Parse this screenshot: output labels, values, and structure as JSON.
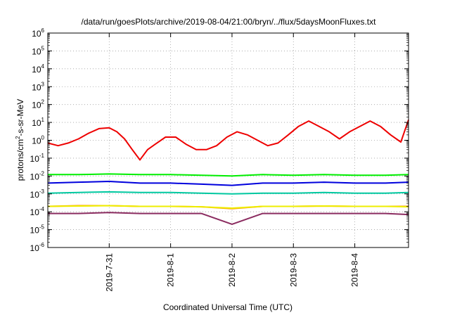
{
  "chart_data": {
    "type": "line",
    "title": "/data/run/goesPlots/archive/2019-08-04/21:00/bryn/../flux/5daysMoonFluxes.txt",
    "xlabel": "Coordinated Universal Time (UTC)",
    "ylabel_parts": [
      "protons/cm",
      "2",
      "-s-sr-MeV"
    ],
    "y_scale": "log",
    "ylim": [
      1e-06,
      1000000.0
    ],
    "y_ticks": [
      {
        "base": "10",
        "exp": "-6"
      },
      {
        "base": "10",
        "exp": "-5"
      },
      {
        "base": "10",
        "exp": "-4"
      },
      {
        "base": "10",
        "exp": "-3"
      },
      {
        "base": "10",
        "exp": "-2"
      },
      {
        "base": "10",
        "exp": "-1"
      },
      {
        "base": "10",
        "exp": "0"
      },
      {
        "base": "10",
        "exp": "1"
      },
      {
        "base": "10",
        "exp": "2"
      },
      {
        "base": "10",
        "exp": "3"
      },
      {
        "base": "10",
        "exp": "4"
      },
      {
        "base": "10",
        "exp": "5"
      },
      {
        "base": "10",
        "exp": "6"
      }
    ],
    "xlim": [
      "2019-07-30T00:00",
      "2019-08-04T21:00"
    ],
    "x_ticks": [
      "2019-7-31",
      "2019-8-1",
      "2019-8-2",
      "2019-8-3",
      "2019-8-4"
    ],
    "grid": true,
    "colors": {
      "red": "#ee0000",
      "green": "#00ee00",
      "blue": "#0000dd",
      "teal": "#00c8a0",
      "yellow": "#eeee00",
      "orange": "#ff8800",
      "purple": "#8b2c60"
    },
    "series": [
      {
        "color": "red",
        "x": [
          "2019-07-30T00:00",
          "2019-07-30T04:00",
          "2019-07-30T08:00",
          "2019-07-30T12:00",
          "2019-07-30T16:00",
          "2019-07-30T20:00",
          "2019-07-31T00:00",
          "2019-07-31T03:00",
          "2019-07-31T06:00",
          "2019-07-31T09:00",
          "2019-07-31T12:00",
          "2019-07-31T15:00",
          "2019-07-31T18:00",
          "2019-07-31T22:00",
          "2019-08-01T02:00",
          "2019-08-01T06:00",
          "2019-08-01T10:00",
          "2019-08-01T14:00",
          "2019-08-01T18:00",
          "2019-08-01T22:00",
          "2019-08-02T02:00",
          "2019-08-02T06:00",
          "2019-08-02T10:00",
          "2019-08-02T14:00",
          "2019-08-02T18:00",
          "2019-08-02T22:00",
          "2019-08-03T02:00",
          "2019-08-03T06:00",
          "2019-08-03T10:00",
          "2019-08-03T14:00",
          "2019-08-03T18:00",
          "2019-08-03T22:00",
          "2019-08-04T02:00",
          "2019-08-04T06:00",
          "2019-08-04T10:00",
          "2019-08-04T14:00",
          "2019-08-04T18:00",
          "2019-08-04T21:00"
        ],
        "values": [
          0.7,
          0.5,
          0.7,
          1.2,
          2.5,
          4.5,
          5,
          3,
          1.2,
          0.3,
          0.08,
          0.3,
          0.6,
          1.5,
          1.5,
          0.6,
          0.3,
          0.3,
          0.5,
          1.5,
          3,
          2,
          1,
          0.5,
          0.7,
          2,
          6,
          12,
          6,
          3,
          1.2,
          3,
          6,
          12,
          6,
          2,
          0.8,
          14
        ]
      },
      {
        "color": "green",
        "x": [
          "2019-07-30T00:00",
          "2019-07-30T12:00",
          "2019-07-31T00:00",
          "2019-07-31T12:00",
          "2019-08-01T00:00",
          "2019-08-01T12:00",
          "2019-08-02T00:00",
          "2019-08-02T12:00",
          "2019-08-03T00:00",
          "2019-08-03T12:00",
          "2019-08-04T00:00",
          "2019-08-04T12:00",
          "2019-08-04T21:00"
        ],
        "values": [
          0.012,
          0.012,
          0.013,
          0.012,
          0.012,
          0.011,
          0.01,
          0.012,
          0.011,
          0.012,
          0.011,
          0.011,
          0.012
        ]
      },
      {
        "color": "teal",
        "x": [
          "2019-07-30T00:00",
          "2019-07-30T12:00",
          "2019-07-31T00:00",
          "2019-07-31T12:00",
          "2019-08-01T00:00",
          "2019-08-01T12:00",
          "2019-08-02T00:00",
          "2019-08-02T12:00",
          "2019-08-03T00:00",
          "2019-08-03T12:00",
          "2019-08-04T00:00",
          "2019-08-04T12:00",
          "2019-08-04T21:00"
        ],
        "values": [
          0.0011,
          0.0012,
          0.0013,
          0.0012,
          0.0012,
          0.0011,
          0.001,
          0.0011,
          0.0011,
          0.0012,
          0.0011,
          0.0011,
          0.0012
        ]
      },
      {
        "color": "blue",
        "x": [
          "2019-07-30T00:00",
          "2019-07-30T12:00",
          "2019-07-31T00:00",
          "2019-07-31T12:00",
          "2019-08-01T00:00",
          "2019-08-01T12:00",
          "2019-08-02T00:00",
          "2019-08-02T12:00",
          "2019-08-03T00:00",
          "2019-08-03T12:00",
          "2019-08-04T00:00",
          "2019-08-04T12:00",
          "2019-08-04T21:00"
        ],
        "values": [
          0.004,
          0.0045,
          0.005,
          0.004,
          0.004,
          0.0035,
          0.003,
          0.004,
          0.004,
          0.0045,
          0.004,
          0.004,
          0.0045
        ]
      },
      {
        "color": "yellow",
        "x": [
          "2019-07-30T00:00",
          "2019-07-30T12:00",
          "2019-07-31T00:00",
          "2019-07-31T12:00",
          "2019-08-01T00:00",
          "2019-08-01T12:00",
          "2019-08-02T00:00",
          "2019-08-02T12:00",
          "2019-08-03T00:00",
          "2019-08-03T12:00",
          "2019-08-04T00:00",
          "2019-08-04T12:00",
          "2019-08-04T21:00"
        ],
        "values": [
          0.0002,
          0.00021,
          0.00022,
          0.0002,
          0.0002,
          0.00019,
          0.00016,
          0.0002,
          0.0002,
          0.00021,
          0.0002,
          0.0002,
          0.00019
        ]
      },
      {
        "color": "orange",
        "x": [
          "2019-07-30T00:00",
          "2019-07-30T12:00",
          "2019-07-31T00:00",
          "2019-07-31T12:00",
          "2019-08-01T00:00",
          "2019-08-01T12:00",
          "2019-08-02T00:00",
          "2019-08-02T12:00",
          "2019-08-03T00:00",
          "2019-08-03T12:00",
          "2019-08-04T00:00",
          "2019-08-04T12:00",
          "2019-08-04T21:00"
        ],
        "values": [
          0.0002,
          0.00022,
          0.00022,
          0.0002,
          0.0002,
          0.00019,
          0.00015,
          0.0002,
          0.0002,
          0.00021,
          0.0002,
          0.0002,
          0.0002
        ]
      },
      {
        "color": "purple",
        "x": [
          "2019-07-30T00:00",
          "2019-07-30T12:00",
          "2019-07-31T00:00",
          "2019-07-31T12:00",
          "2019-08-01T00:00",
          "2019-08-01T12:00",
          "2019-08-02T00:00",
          "2019-08-02T12:00",
          "2019-08-03T00:00",
          "2019-08-03T12:00",
          "2019-08-04T00:00",
          "2019-08-04T12:00",
          "2019-08-04T21:00"
        ],
        "values": [
          8e-05,
          8e-05,
          9e-05,
          8e-05,
          8e-05,
          8e-05,
          2e-05,
          8e-05,
          8e-05,
          8e-05,
          8e-05,
          8e-05,
          7e-05
        ]
      }
    ]
  }
}
